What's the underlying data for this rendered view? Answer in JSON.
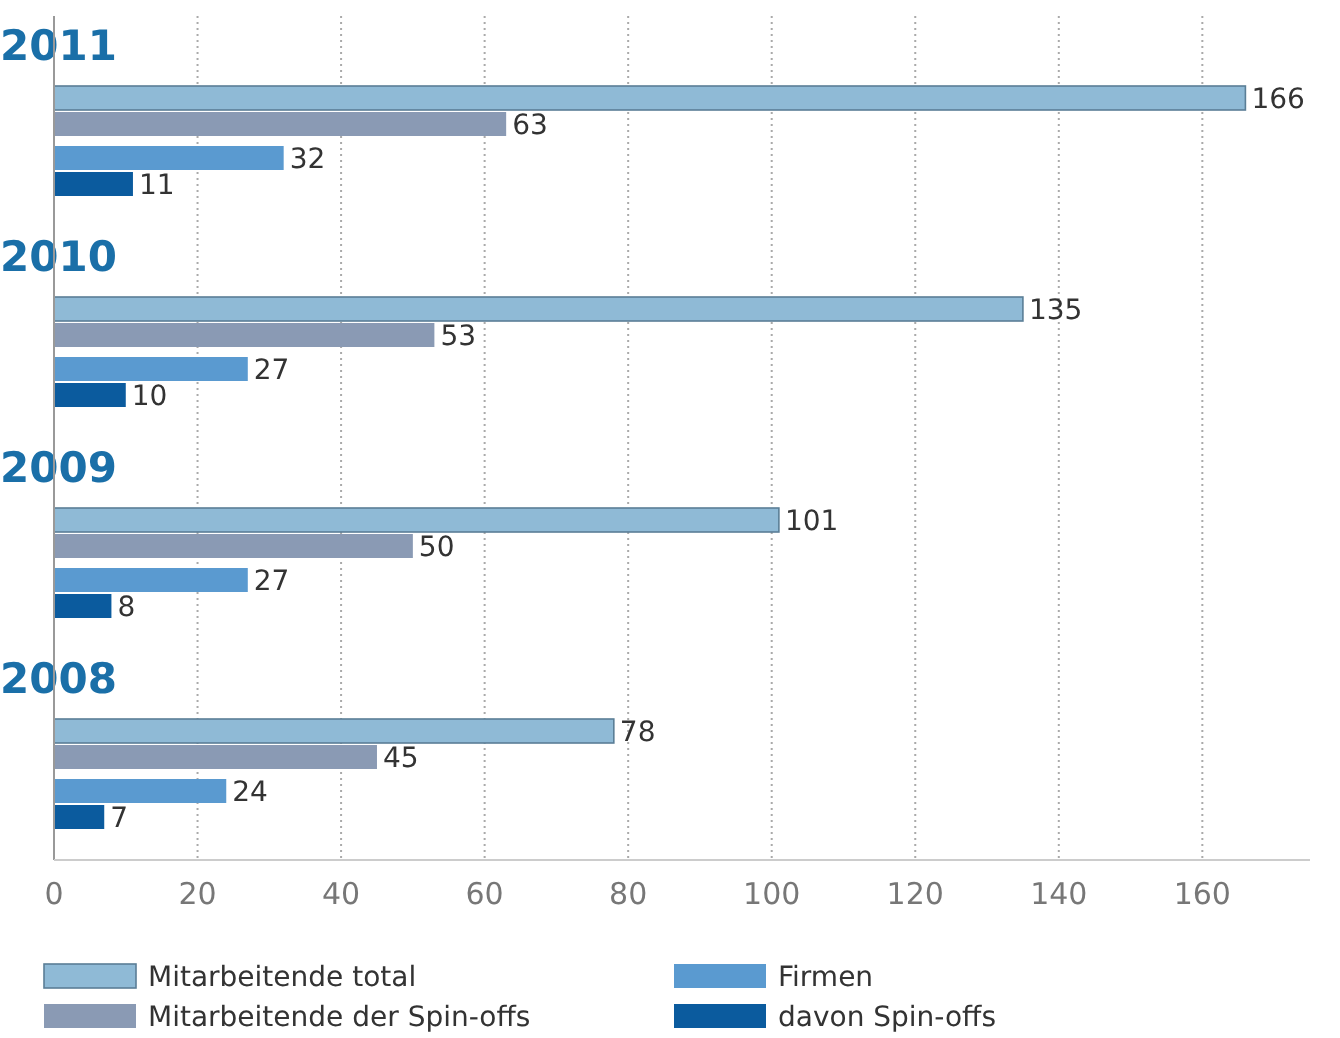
{
  "chart_data": {
    "type": "bar",
    "orientation": "horizontal",
    "categories": [
      "2011",
      "2010",
      "2009",
      "2008"
    ],
    "series": [
      {
        "name": "Mitarbeitende total",
        "color": "#8fbad6",
        "values": [
          166,
          135,
          101,
          78
        ]
      },
      {
        "name": "Mitarbeitende der Spin-offs",
        "color": "#8a9ab4",
        "values": [
          63,
          53,
          50,
          45
        ]
      },
      {
        "name": "Firmen",
        "color": "#5a9ad0",
        "values": [
          32,
          27,
          27,
          24
        ]
      },
      {
        "name": "davon Spin-offs",
        "color": "#0b5b9e",
        "values": [
          11,
          10,
          8,
          7
        ]
      }
    ],
    "xlim": [
      0,
      175
    ],
    "xticks": [
      0,
      20,
      40,
      60,
      80,
      100,
      120,
      140,
      160
    ],
    "grid": "x",
    "legend": "bottom",
    "data_labels": true
  }
}
